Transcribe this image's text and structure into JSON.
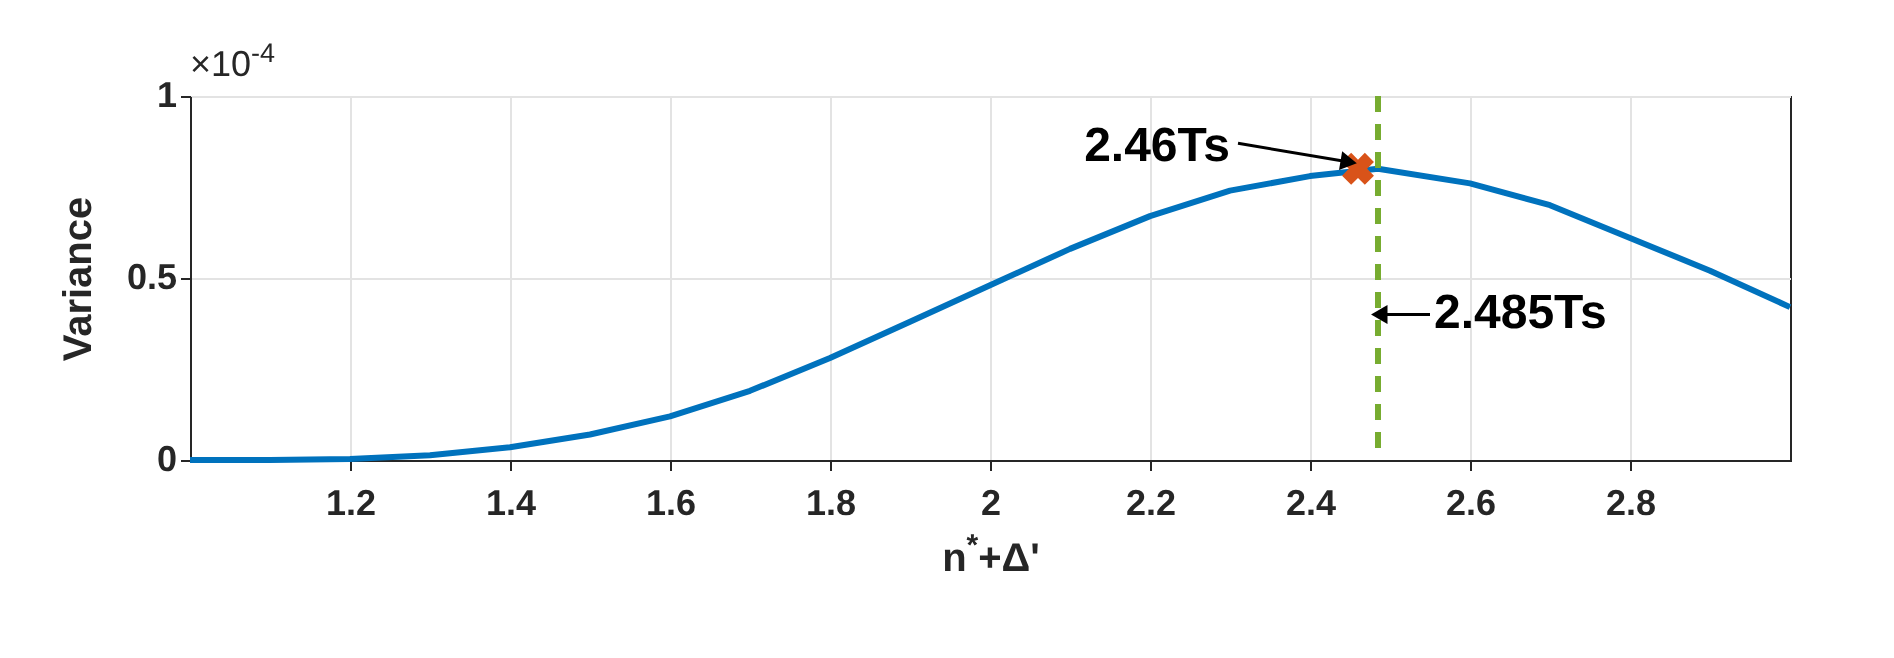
{
  "chart_data": {
    "type": "line",
    "xlabel": "n$^{*}$+Δ'",
    "ylabel": "Variance",
    "xlim": [
      1,
      3
    ],
    "xticks": [
      1.2,
      1.4,
      1.6,
      1.8,
      2,
      2.2,
      2.4,
      2.6,
      2.8
    ],
    "ylim": [
      0,
      1
    ],
    "yticks": [
      0,
      0.5,
      1
    ],
    "grid": true,
    "series": [
      {
        "color": "#0072bd",
        "x": [
          1.0,
          1.1,
          1.2,
          1.3,
          1.4,
          1.5,
          1.6,
          1.7,
          1.8,
          1.9,
          2.0,
          2.1,
          2.2,
          2.3,
          2.4,
          2.485,
          2.6,
          2.7,
          2.8,
          2.9,
          3.0
        ],
        "values": [
          0,
          0,
          0.003,
          0.013,
          0.035,
          0.07,
          0.12,
          0.19,
          0.28,
          0.38,
          0.48,
          0.58,
          0.67,
          0.74,
          0.78,
          0.8,
          0.76,
          0.7,
          0.61,
          0.52,
          0.42
        ]
      },
      {
        "type": "scatter",
        "color": "#d95319",
        "marker": "cross",
        "x": [
          2.46
        ],
        "values": [
          0.8
        ]
      }
    ],
    "ref_lines": [
      {
        "axis": "x",
        "value": 2.485,
        "color": "#77ac30",
        "line_style": "dashed"
      }
    ],
    "annotations": [
      "×10$^{-4}$",
      {
        "text": "2.46Ts",
        "x": 2.46,
        "y": 0.8
      },
      {
        "text": "2.485Ts",
        "x": 2.485,
        "y": 0.4
      }
    ]
  }
}
